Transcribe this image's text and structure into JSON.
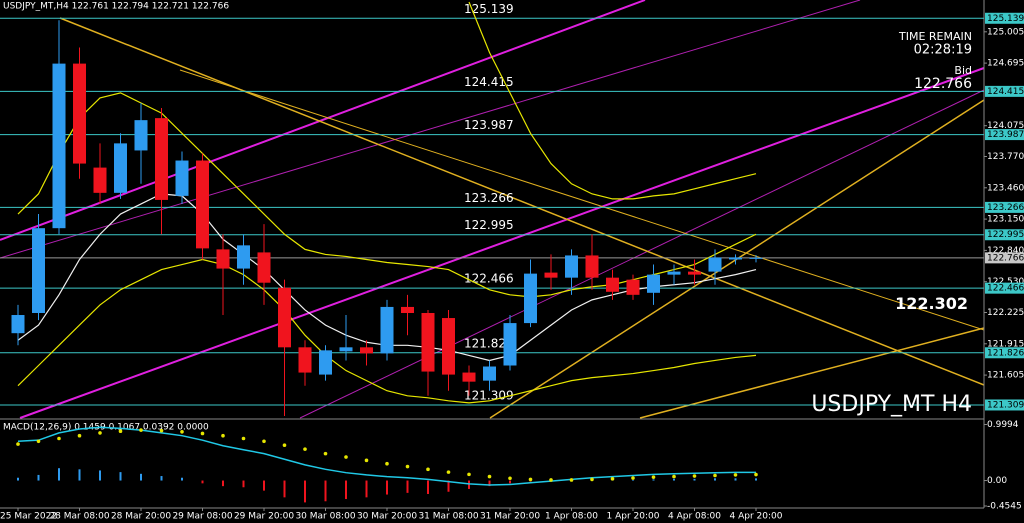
{
  "header": "USDJPY_MT,H4 122.761 122.794 122.721 122.766",
  "info": {
    "time_remain_label": "TIME REMAIN",
    "time_remain": "02:28:19",
    "bid_label": "Bid",
    "bid": 122.766
  },
  "chart_data": [
    {
      "type": "candlestick",
      "categories": [
        "25 Mar 2022",
        null,
        null,
        "28 Mar 08:00",
        null,
        null,
        "28 Mar 20:00",
        null,
        null,
        "29 Mar 08:00",
        null,
        null,
        "29 Mar 20:00",
        null,
        null,
        "30 Mar 08:00",
        null,
        null,
        "30 Mar 20:00",
        null,
        null,
        "31 Mar 08:00",
        null,
        null,
        "31 Mar 20:00",
        null,
        null,
        "1 Apr 08:00",
        null,
        null,
        "1 Apr 20:00",
        null,
        null,
        "4 Apr 08:00",
        null,
        null,
        "4 Apr 20:00"
      ],
      "open": [
        122.02,
        122.22,
        123.06,
        124.69,
        123.66,
        123.41,
        123.83,
        124.15,
        123.38,
        123.73,
        122.85,
        122.66,
        122.82,
        122.47,
        121.88,
        121.61,
        121.84,
        121.88,
        121.82,
        122.28,
        122.22,
        122.17,
        121.63,
        121.55,
        121.7,
        122.12,
        122.62,
        122.57,
        122.79,
        122.57,
        122.55,
        122.42,
        122.6,
        122.63,
        122.63,
        122.75,
        122.761
      ],
      "high": [
        122.3,
        123.2,
        125.12,
        124.85,
        123.9,
        124.0,
        124.3,
        124.25,
        123.82,
        123.8,
        123.0,
        123.0,
        123.1,
        122.55,
        121.95,
        121.9,
        122.2,
        121.95,
        122.35,
        122.4,
        122.25,
        122.25,
        121.7,
        121.75,
        122.2,
        122.75,
        122.8,
        122.85,
        123.0,
        122.65,
        122.6,
        122.7,
        122.7,
        122.75,
        122.85,
        122.8,
        122.794
      ],
      "low": [
        121.9,
        122.15,
        123.0,
        123.55,
        123.3,
        123.35,
        123.5,
        123.0,
        123.3,
        122.75,
        122.2,
        122.5,
        122.3,
        121.2,
        121.5,
        121.55,
        121.75,
        121.7,
        121.75,
        122.0,
        121.4,
        121.45,
        121.4,
        121.45,
        121.65,
        122.08,
        122.45,
        122.4,
        122.45,
        122.35,
        122.35,
        122.3,
        122.5,
        122.5,
        122.5,
        122.7,
        122.721
      ],
      "close": [
        122.2,
        123.06,
        124.69,
        123.7,
        123.41,
        123.9,
        124.13,
        123.34,
        123.73,
        122.86,
        122.66,
        122.89,
        122.52,
        121.88,
        121.63,
        121.85,
        121.88,
        121.82,
        122.28,
        122.22,
        121.64,
        121.61,
        121.54,
        121.69,
        122.12,
        122.61,
        122.57,
        122.79,
        122.57,
        122.43,
        122.4,
        122.6,
        122.63,
        122.6,
        122.77,
        122.77,
        122.766
      ],
      "up_color": "#2e9bf0",
      "down_color": "#f0141e",
      "overlays": [
        {
          "color": "#f0f0f0",
          "values": [
            121.95,
            122.1,
            122.4,
            122.75,
            123.0,
            123.2,
            123.3,
            123.4,
            123.38,
            123.2,
            122.95,
            122.8,
            122.65,
            122.45,
            122.25,
            122.1,
            122.0,
            121.93,
            121.9,
            121.9,
            121.88,
            121.85,
            121.8,
            121.75,
            121.8,
            121.95,
            122.1,
            122.25,
            122.35,
            122.4,
            122.45,
            122.48,
            122.5,
            122.52,
            122.56,
            122.6,
            122.65
          ]
        },
        {
          "color": "#e6e600",
          "values": [
            123.2,
            123.4,
            123.8,
            124.15,
            124.35,
            124.4,
            124.3,
            124.2,
            124.0,
            123.8,
            123.6,
            123.4,
            123.2,
            123.0,
            122.85,
            122.8,
            122.78,
            122.75,
            122.72,
            122.7,
            122.68,
            122.65,
            122.55,
            122.45,
            122.4,
            122.38,
            122.4,
            122.45,
            122.48,
            122.5,
            122.55,
            122.6,
            122.65,
            122.7,
            122.8,
            122.9,
            123.0
          ]
        },
        {
          "color": "#e6e600",
          "values": [
            121.5,
            121.7,
            121.9,
            122.1,
            122.3,
            122.45,
            122.55,
            122.65,
            122.7,
            122.75,
            122.7,
            122.6,
            122.45,
            122.25,
            122.0,
            121.8,
            121.65,
            121.55,
            121.45,
            121.4,
            121.38,
            121.35,
            121.33,
            121.35,
            121.4,
            121.45,
            121.5,
            121.55,
            121.58,
            121.6,
            121.62,
            121.65,
            121.68,
            121.72,
            121.75,
            121.78,
            121.8
          ]
        },
        {
          "color": "#e6e600",
          "values": [
            null,
            null,
            null,
            null,
            null,
            null,
            null,
            null,
            null,
            null,
            null,
            null,
            null,
            null,
            null,
            null,
            null,
            null,
            null,
            null,
            null,
            null,
            125.3,
            124.8,
            124.4,
            124.0,
            123.7,
            123.5,
            123.4,
            123.35,
            123.35,
            123.38,
            123.4,
            123.45,
            123.5,
            123.55,
            123.6
          ]
        }
      ],
      "levels": [
        125.139,
        124.415,
        123.987,
        123.266,
        122.995,
        122.466,
        121.826,
        121.309
      ],
      "level_color": "#3cc8c8",
      "annotation": 122.302,
      "watermark": "USDJPY_MT H4",
      "ylim": [
        121.18,
        125.32
      ],
      "yticks": [
        125.005,
        124.695,
        124.075,
        {
          "value": 123.77,
          "label": "123.770"
        },
        {
          "value": 123.46,
          "label": "123.460"
        },
        {
          "value": 123.15,
          "label": "123.150"
        },
        {
          "value": 122.84,
          "label": "122.840"
        },
        {
          "value": 122.53,
          "label": "122.530"
        },
        122.225,
        121.915,
        121.605
      ]
    },
    {
      "type": "macd",
      "title": "MACD(12,26,9) 0.1459 0.1067 0.0392 0.0000",
      "histogram": [
        0.05,
        0.1,
        0.22,
        0.2,
        0.18,
        0.15,
        0.12,
        0.08,
        0.05,
        -0.05,
        -0.1,
        -0.12,
        -0.18,
        -0.3,
        -0.39,
        -0.37,
        -0.33,
        -0.3,
        -0.25,
        -0.22,
        -0.24,
        -0.2,
        -0.15,
        -0.1,
        -0.05,
        -0.02,
        0.01,
        0.02,
        0.02,
        0.01,
        0.01,
        0.02,
        0.03,
        0.03,
        0.04,
        0.04,
        0.0392
      ],
      "macd": [
        0.7,
        0.72,
        0.85,
        0.92,
        0.95,
        0.93,
        0.9,
        0.85,
        0.8,
        0.72,
        0.62,
        0.55,
        0.48,
        0.38,
        0.28,
        0.2,
        0.14,
        0.1,
        0.07,
        0.05,
        0.02,
        -0.02,
        -0.06,
        -0.08,
        -0.07,
        -0.04,
        -0.01,
        0.02,
        0.05,
        0.07,
        0.09,
        0.11,
        0.12,
        0.13,
        0.14,
        0.145,
        0.1459
      ],
      "signal": [
        0.65,
        0.7,
        0.75,
        0.8,
        0.85,
        0.88,
        0.9,
        0.89,
        0.87,
        0.84,
        0.8,
        0.75,
        0.7,
        0.63,
        0.56,
        0.48,
        0.42,
        0.36,
        0.3,
        0.25,
        0.2,
        0.15,
        0.11,
        0.07,
        0.04,
        0.02,
        0.01,
        0.01,
        0.02,
        0.03,
        0.045,
        0.06,
        0.07,
        0.08,
        0.09,
        0.1,
        0.1067
      ],
      "macd_color": "#20c8e6",
      "signal_color": "#e6e600",
      "hist_up_color": "#2e9bf0",
      "hist_down_color": "#f0141e",
      "ylim": [
        -0.49,
        1.08
      ],
      "yticks": [
        0.9994,
        {
          "value": 0,
          "label": "0.00"
        },
        -0.4545
      ]
    }
  ]
}
